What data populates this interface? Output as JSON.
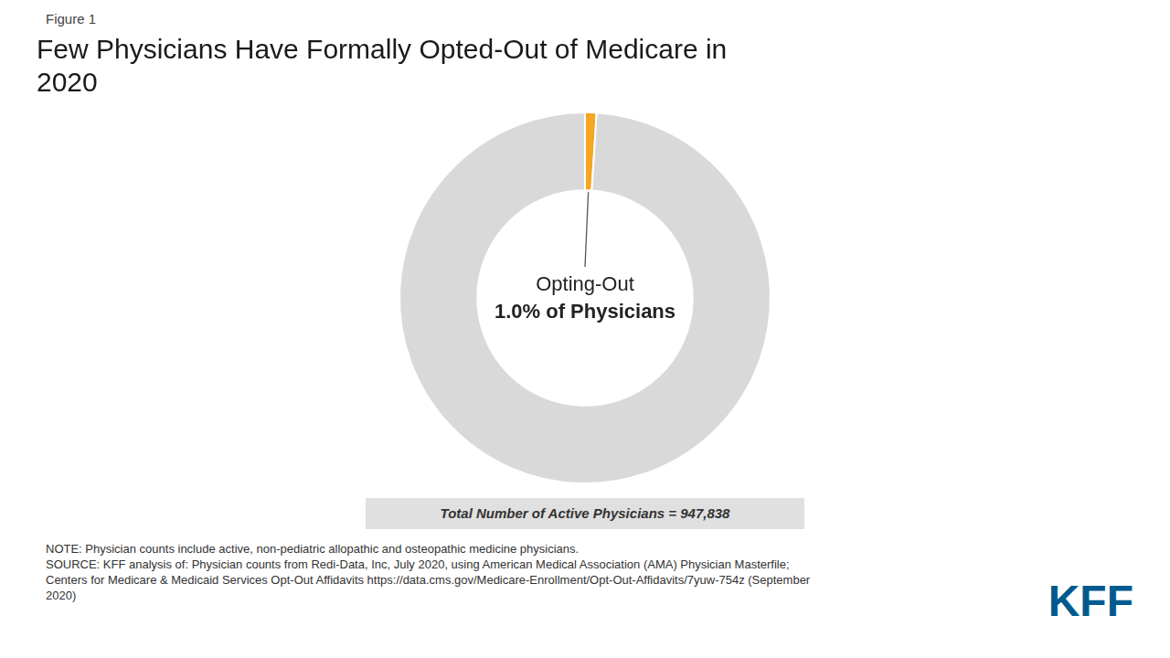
{
  "chart_data": {
    "type": "doughnut",
    "title": "Few Physicians Have Formally Opted-Out of Medicare in\n2020",
    "values": [
      1.0,
      99.0
    ],
    "colors": [
      "#F5A623",
      "#D9D9D9"
    ],
    "annotations": {
      "figure_label": "Figure 1",
      "center": [
        "Opting-Out",
        "1.0% of Physicians"
      ],
      "total": "Total Number of Active Physicians = 947,838",
      "notes": [
        "NOTE: Physician counts include active, non-pediatric allopathic and osteopathic medicine physicians.",
        "SOURCE: KFF analysis of: Physician counts from Redi-Data, Inc, July 2020, using American Medical Association (AMA) Physician Masterfile;",
        "Centers for Medicare & Medicaid Services Opt-Out Affidavits https://data.cms.gov/Medicare-Enrollment/Opt-Out-Affidavits/7yuw-754z (September",
        "2020)"
      ],
      "logo": {
        "text": "KFF",
        "color": "#005A8E"
      }
    }
  }
}
